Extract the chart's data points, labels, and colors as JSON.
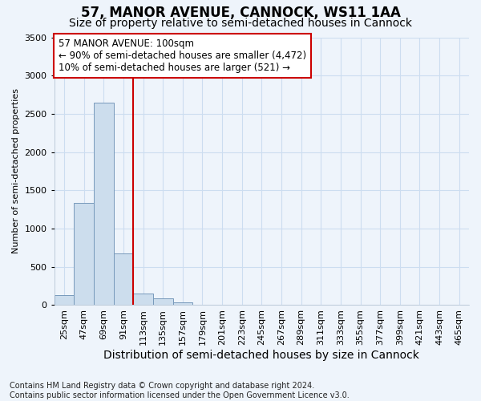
{
  "title": "57, MANOR AVENUE, CANNOCK, WS11 1AA",
  "subtitle": "Size of property relative to semi-detached houses in Cannock",
  "xlabel": "Distribution of semi-detached houses by size in Cannock",
  "ylabel": "Number of semi-detached properties",
  "categories": [
    "25sqm",
    "47sqm",
    "69sqm",
    "91sqm",
    "113sqm",
    "135sqm",
    "157sqm",
    "179sqm",
    "201sqm",
    "223sqm",
    "245sqm",
    "267sqm",
    "289sqm",
    "311sqm",
    "333sqm",
    "355sqm",
    "377sqm",
    "399sqm",
    "421sqm",
    "443sqm",
    "465sqm"
  ],
  "values": [
    130,
    1340,
    2650,
    680,
    150,
    90,
    35,
    0,
    0,
    0,
    0,
    0,
    0,
    0,
    0,
    0,
    0,
    0,
    0,
    0,
    0
  ],
  "bar_color": "#ccdded",
  "bar_edge_color": "#7799bb",
  "grid_color": "#ccddf0",
  "background_color": "#eef4fb",
  "property_line_color": "#cc0000",
  "annotation_text": "57 MANOR AVENUE: 100sqm\n← 90% of semi-detached houses are smaller (4,472)\n10% of semi-detached houses are larger (521) →",
  "annotation_box_color": "#ffffff",
  "annotation_box_edge": "#cc0000",
  "footnote": "Contains HM Land Registry data © Crown copyright and database right 2024.\nContains public sector information licensed under the Open Government Licence v3.0.",
  "ylim": [
    0,
    3500
  ],
  "title_fontsize": 12,
  "subtitle_fontsize": 10,
  "ylabel_fontsize": 8,
  "xlabel_fontsize": 10,
  "tick_fontsize": 8,
  "annot_fontsize": 8.5,
  "footnote_fontsize": 7
}
